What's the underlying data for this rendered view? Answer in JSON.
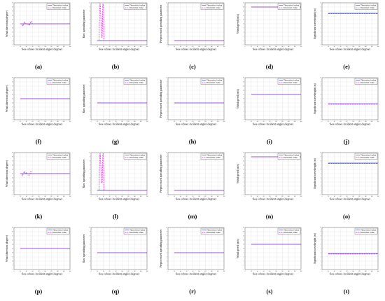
{
  "legend": {
    "theoretical": "Theoretical value",
    "inversion": "Inversion value"
  },
  "colors": {
    "theoretical": "#1f3fd6",
    "inversion": "#e036e0",
    "grid": "#d9d9d9"
  },
  "chart_data": [
    {
      "panel": "(a)",
      "type": "line",
      "ylabel": "Wind direction (degree)",
      "xlabel": "Sea echoes incident angle (degree)",
      "xlim": [
        0,
        180
      ],
      "ylim": [
        0,
        90
      ],
      "xticks": [
        0,
        20,
        40,
        60,
        80,
        100,
        120,
        140,
        160,
        180
      ],
      "series": [
        {
          "name": "Theoretical value",
          "x": [
            20,
            180
          ],
          "y": [
            45,
            45
          ]
        },
        {
          "name": "Inversion value",
          "x": [
            20,
            25,
            28,
            31,
            34,
            37,
            40,
            43,
            46,
            49,
            52,
            55,
            58,
            61,
            180
          ],
          "y": [
            45,
            45,
            40,
            45,
            49,
            45,
            46,
            44,
            45,
            41,
            45,
            51,
            46,
            45,
            45
          ]
        }
      ]
    },
    {
      "panel": "(b)",
      "type": "line",
      "ylabel": "Raw spreading parameter",
      "xlabel": "Sea echoes incident angle (degree)",
      "xlim": [
        0,
        180
      ],
      "ylim": [
        0,
        10
      ],
      "xticks": [
        0,
        20,
        40,
        60,
        80,
        100,
        120,
        140,
        160,
        180
      ],
      "series": [
        {
          "name": "Theoretical value",
          "x": [
            20,
            180
          ],
          "y": [
            1,
            1
          ]
        },
        {
          "name": "Inversion value",
          "x": [
            20,
            26,
            28,
            30,
            34,
            36,
            38,
            40,
            42,
            180
          ],
          "y": [
            1,
            1,
            9.7,
            9.7,
            1.8,
            1.8,
            9.7,
            9.7,
            1,
            1
          ]
        }
      ]
    },
    {
      "panel": "(c)",
      "type": "line",
      "ylabel": "Preprocessed spreading parameter",
      "xlabel": "Sea echoes incident angle (degree)",
      "xlim": [
        0,
        180
      ],
      "ylim": [
        0,
        10
      ],
      "xticks": [
        0,
        20,
        40,
        60,
        80,
        100,
        120,
        140,
        160,
        180
      ],
      "series": [
        {
          "name": "Theoretical value",
          "x": [
            20,
            180
          ],
          "y": [
            1,
            1
          ]
        },
        {
          "name": "Inversion value",
          "x": [
            20,
            180
          ],
          "y": [
            1,
            1
          ]
        }
      ]
    },
    {
      "panel": "(d)",
      "type": "line",
      "ylabel": "Wind speed (m/s)",
      "xlabel": "Sea echoes incident angle (degree)",
      "xlim": [
        0,
        180
      ],
      "ylim": [
        0,
        20
      ],
      "xticks": [
        0,
        20,
        40,
        60,
        80,
        100,
        120,
        140,
        160,
        180
      ],
      "series": [
        {
          "name": "Theoretical value",
          "x": [
            20,
            180
          ],
          "y": [
            18,
            18
          ]
        },
        {
          "name": "Inversion value",
          "x": [
            20,
            180
          ],
          "y": [
            18,
            18
          ]
        }
      ]
    },
    {
      "panel": "(e)",
      "type": "line",
      "ylabel": "Significant waveheight (m)",
      "xlabel": "Sea echoes incident angle (degree)",
      "xlim": [
        0,
        180
      ],
      "ylim": [
        0,
        10
      ],
      "xticks": [
        0,
        20,
        40,
        60,
        80,
        100,
        120,
        140,
        160,
        180
      ],
      "series": [
        {
          "name": "Theoretical value",
          "x": [
            20,
            180
          ],
          "y": [
            7.5,
            7.5
          ]
        },
        {
          "name": "Inversion value",
          "x": [
            20,
            180
          ],
          "y": [
            7.4,
            7.4
          ]
        }
      ]
    },
    {
      "panel": "(f)",
      "type": "line",
      "ylabel": "Wind direction (degree)",
      "xlabel": "Sea echoes incident angle (degree)",
      "xlim": [
        0,
        180
      ],
      "ylim": [
        0,
        90
      ],
      "xticks": [
        0,
        20,
        40,
        60,
        80,
        100,
        120,
        140,
        160,
        180
      ],
      "series": [
        {
          "name": "Theoretical value",
          "x": [
            20,
            180
          ],
          "y": [
            45,
            45
          ]
        },
        {
          "name": "Inversion value",
          "x": [
            20,
            180
          ],
          "y": [
            45,
            45
          ]
        }
      ]
    },
    {
      "panel": "(g)",
      "type": "line",
      "ylabel": "Raw spreading parameter",
      "xlabel": "Sea echoes incident angle (degree)",
      "xlim": [
        0,
        180
      ],
      "ylim": [
        0,
        10
      ],
      "xticks": [
        0,
        20,
        40,
        60,
        80,
        100,
        120,
        140,
        160,
        180
      ],
      "series": [
        {
          "name": "Theoretical value",
          "x": [
            20,
            180
          ],
          "y": [
            4,
            4
          ]
        },
        {
          "name": "Inversion value",
          "x": [
            20,
            180
          ],
          "y": [
            4,
            4
          ]
        }
      ]
    },
    {
      "panel": "(h)",
      "type": "line",
      "ylabel": "Preprocessed spreading parameter",
      "xlabel": "Sea echoes incident angle (degree)",
      "xlim": [
        0,
        180
      ],
      "ylim": [
        0,
        10
      ],
      "xticks": [
        0,
        20,
        40,
        60,
        80,
        100,
        120,
        140,
        160,
        180
      ],
      "series": [
        {
          "name": "Theoretical value",
          "x": [
            20,
            180
          ],
          "y": [
            4,
            4
          ]
        },
        {
          "name": "Inversion value",
          "x": [
            20,
            180
          ],
          "y": [
            4,
            4
          ]
        }
      ]
    },
    {
      "panel": "(i)",
      "type": "line",
      "ylabel": "Wind speed (m/s)",
      "xlabel": "Sea echoes incident angle (degree)",
      "xlim": [
        0,
        180
      ],
      "ylim": [
        0,
        20
      ],
      "xticks": [
        0,
        20,
        40,
        60,
        80,
        100,
        120,
        140,
        160,
        180
      ],
      "series": [
        {
          "name": "Theoretical value",
          "x": [
            20,
            180
          ],
          "y": [
            12,
            12
          ]
        },
        {
          "name": "Inversion value",
          "x": [
            20,
            180
          ],
          "y": [
            12,
            12
          ]
        }
      ]
    },
    {
      "panel": "(j)",
      "type": "line",
      "ylabel": "Significant waveheight (m)",
      "xlabel": "Sea echoes incident angle (degree)",
      "xlim": [
        0,
        180
      ],
      "ylim": [
        0,
        10
      ],
      "xticks": [
        0,
        20,
        40,
        60,
        80,
        100,
        120,
        140,
        160,
        180
      ],
      "series": [
        {
          "name": "Theoretical value",
          "x": [
            20,
            180
          ],
          "y": [
            3.8,
            3.8
          ]
        },
        {
          "name": "Inversion value",
          "x": [
            20,
            180
          ],
          "y": [
            3.7,
            3.7
          ]
        }
      ]
    },
    {
      "panel": "(k)",
      "type": "line",
      "ylabel": "Wind direction (degree)",
      "xlabel": "Sea echoes incident angle (degree)",
      "xlim": [
        0,
        180
      ],
      "ylim": [
        0,
        90
      ],
      "xticks": [
        0,
        20,
        40,
        60,
        80,
        100,
        120,
        140,
        160,
        180
      ],
      "series": [
        {
          "name": "Theoretical value",
          "x": [
            20,
            180
          ],
          "y": [
            45,
            45
          ]
        },
        {
          "name": "Inversion value",
          "x": [
            20,
            24,
            27,
            30,
            33,
            36,
            39,
            42,
            45,
            48,
            51,
            54,
            57,
            60,
            180
          ],
          "y": [
            45,
            45,
            40,
            45,
            50,
            45,
            47,
            44,
            45,
            41,
            45,
            50,
            45,
            45,
            45
          ]
        }
      ]
    },
    {
      "panel": "(l)",
      "type": "line",
      "ylabel": "Raw spreading parameter",
      "xlabel": "Sea echoes incident angle (degree)",
      "xlim": [
        0,
        180
      ],
      "ylim": [
        0,
        10
      ],
      "xticks": [
        0,
        20,
        40,
        60,
        80,
        100,
        120,
        140,
        160,
        180
      ],
      "series": [
        {
          "name": "Theoretical value",
          "x": [
            20,
            180
          ],
          "y": [
            1,
            1
          ]
        },
        {
          "name": "Inversion value",
          "x": [
            20,
            26,
            28,
            30,
            34,
            36,
            38,
            40,
            42,
            180
          ],
          "y": [
            1,
            1,
            9.7,
            9.7,
            2.8,
            2.8,
            9.7,
            9.7,
            1,
            1
          ]
        }
      ]
    },
    {
      "panel": "(m)",
      "type": "line",
      "ylabel": "Preprocessed spreading parameter",
      "xlabel": "Sea echoes incident angle (degree)",
      "xlim": [
        0,
        180
      ],
      "ylim": [
        0,
        10
      ],
      "xticks": [
        0,
        20,
        40,
        60,
        80,
        100,
        120,
        140,
        160,
        180
      ],
      "series": [
        {
          "name": "Theoretical value",
          "x": [
            20,
            180
          ],
          "y": [
            1,
            1
          ]
        },
        {
          "name": "Inversion value",
          "x": [
            20,
            180
          ],
          "y": [
            1,
            1
          ]
        }
      ]
    },
    {
      "panel": "(n)",
      "type": "line",
      "ylabel": "Wind speed (m/s)",
      "xlabel": "Sea echoes incident angle (degree)",
      "xlim": [
        0,
        180
      ],
      "ylim": [
        0,
        20
      ],
      "xticks": [
        0,
        20,
        40,
        60,
        80,
        100,
        120,
        140,
        160,
        180
      ],
      "series": [
        {
          "name": "Theoretical value",
          "x": [
            20,
            180
          ],
          "y": [
            18,
            18
          ]
        },
        {
          "name": "Inversion value",
          "x": [
            20,
            180
          ],
          "y": [
            18,
            18
          ]
        }
      ]
    },
    {
      "panel": "(o)",
      "type": "line",
      "ylabel": "Significant waveheight (m)",
      "xlabel": "Sea echoes incident angle (degree)",
      "xlim": [
        0,
        180
      ],
      "ylim": [
        0,
        10
      ],
      "xticks": [
        0,
        20,
        40,
        60,
        80,
        100,
        120,
        140,
        160,
        180
      ],
      "series": [
        {
          "name": "Theoretical value",
          "x": [
            20,
            180
          ],
          "y": [
            7.5,
            7.5
          ]
        },
        {
          "name": "Inversion value",
          "x": [
            20,
            180
          ],
          "y": [
            7.4,
            7.4
          ]
        }
      ]
    },
    {
      "panel": "(p)",
      "type": "line",
      "ylabel": "Wind direction (degree)",
      "xlabel": "Sea echoes incident angle (degree)",
      "xlim": [
        0,
        180
      ],
      "ylim": [
        0,
        90
      ],
      "xticks": [
        0,
        20,
        40,
        60,
        80,
        100,
        120,
        140,
        160,
        180
      ],
      "series": [
        {
          "name": "Theoretical value",
          "x": [
            20,
            180
          ],
          "y": [
            45,
            45
          ]
        },
        {
          "name": "Inversion value",
          "x": [
            20,
            180
          ],
          "y": [
            45,
            45
          ]
        }
      ]
    },
    {
      "panel": "(q)",
      "type": "line",
      "ylabel": "Raw spreading parameter",
      "xlabel": "Sea echoes incident angle (degree)",
      "xlim": [
        0,
        180
      ],
      "ylim": [
        0,
        10
      ],
      "xticks": [
        0,
        20,
        40,
        60,
        80,
        100,
        120,
        140,
        160,
        180
      ],
      "series": [
        {
          "name": "Theoretical value",
          "x": [
            20,
            180
          ],
          "y": [
            4,
            4
          ]
        },
        {
          "name": "Inversion value",
          "x": [
            20,
            180
          ],
          "y": [
            4,
            4
          ]
        }
      ]
    },
    {
      "panel": "(r)",
      "type": "line",
      "ylabel": "Preprocessed spreading parameter",
      "xlabel": "Sea echoes incident angle (degree)",
      "xlim": [
        0,
        180
      ],
      "ylim": [
        0,
        10
      ],
      "xticks": [
        0,
        20,
        40,
        60,
        80,
        100,
        120,
        140,
        160,
        180
      ],
      "series": [
        {
          "name": "Theoretical value",
          "x": [
            20,
            180
          ],
          "y": [
            4,
            4
          ]
        },
        {
          "name": "Inversion value",
          "x": [
            20,
            180
          ],
          "y": [
            4,
            4
          ]
        }
      ]
    },
    {
      "panel": "(s)",
      "type": "line",
      "ylabel": "Wind speed (m/s)",
      "xlabel": "Sea echoes incident angle (degree)",
      "xlim": [
        0,
        180
      ],
      "ylim": [
        0,
        20
      ],
      "xticks": [
        0,
        20,
        40,
        60,
        80,
        100,
        120,
        140,
        160,
        180
      ],
      "series": [
        {
          "name": "Theoretical value",
          "x": [
            20,
            180
          ],
          "y": [
            12,
            12
          ]
        },
        {
          "name": "Inversion value",
          "x": [
            20,
            180
          ],
          "y": [
            12,
            12
          ]
        }
      ]
    },
    {
      "panel": "(t)",
      "type": "line",
      "ylabel": "Significant waveheight (m)",
      "xlabel": "Sea echoes incident angle (degree)",
      "xlim": [
        0,
        180
      ],
      "ylim": [
        0,
        10
      ],
      "xticks": [
        0,
        20,
        40,
        60,
        80,
        100,
        120,
        140,
        160,
        180
      ],
      "series": [
        {
          "name": "Theoretical value",
          "x": [
            20,
            180
          ],
          "y": [
            3.8,
            3.8
          ]
        },
        {
          "name": "Inversion value",
          "x": [
            20,
            180
          ],
          "y": [
            3.7,
            3.7
          ]
        }
      ]
    }
  ]
}
